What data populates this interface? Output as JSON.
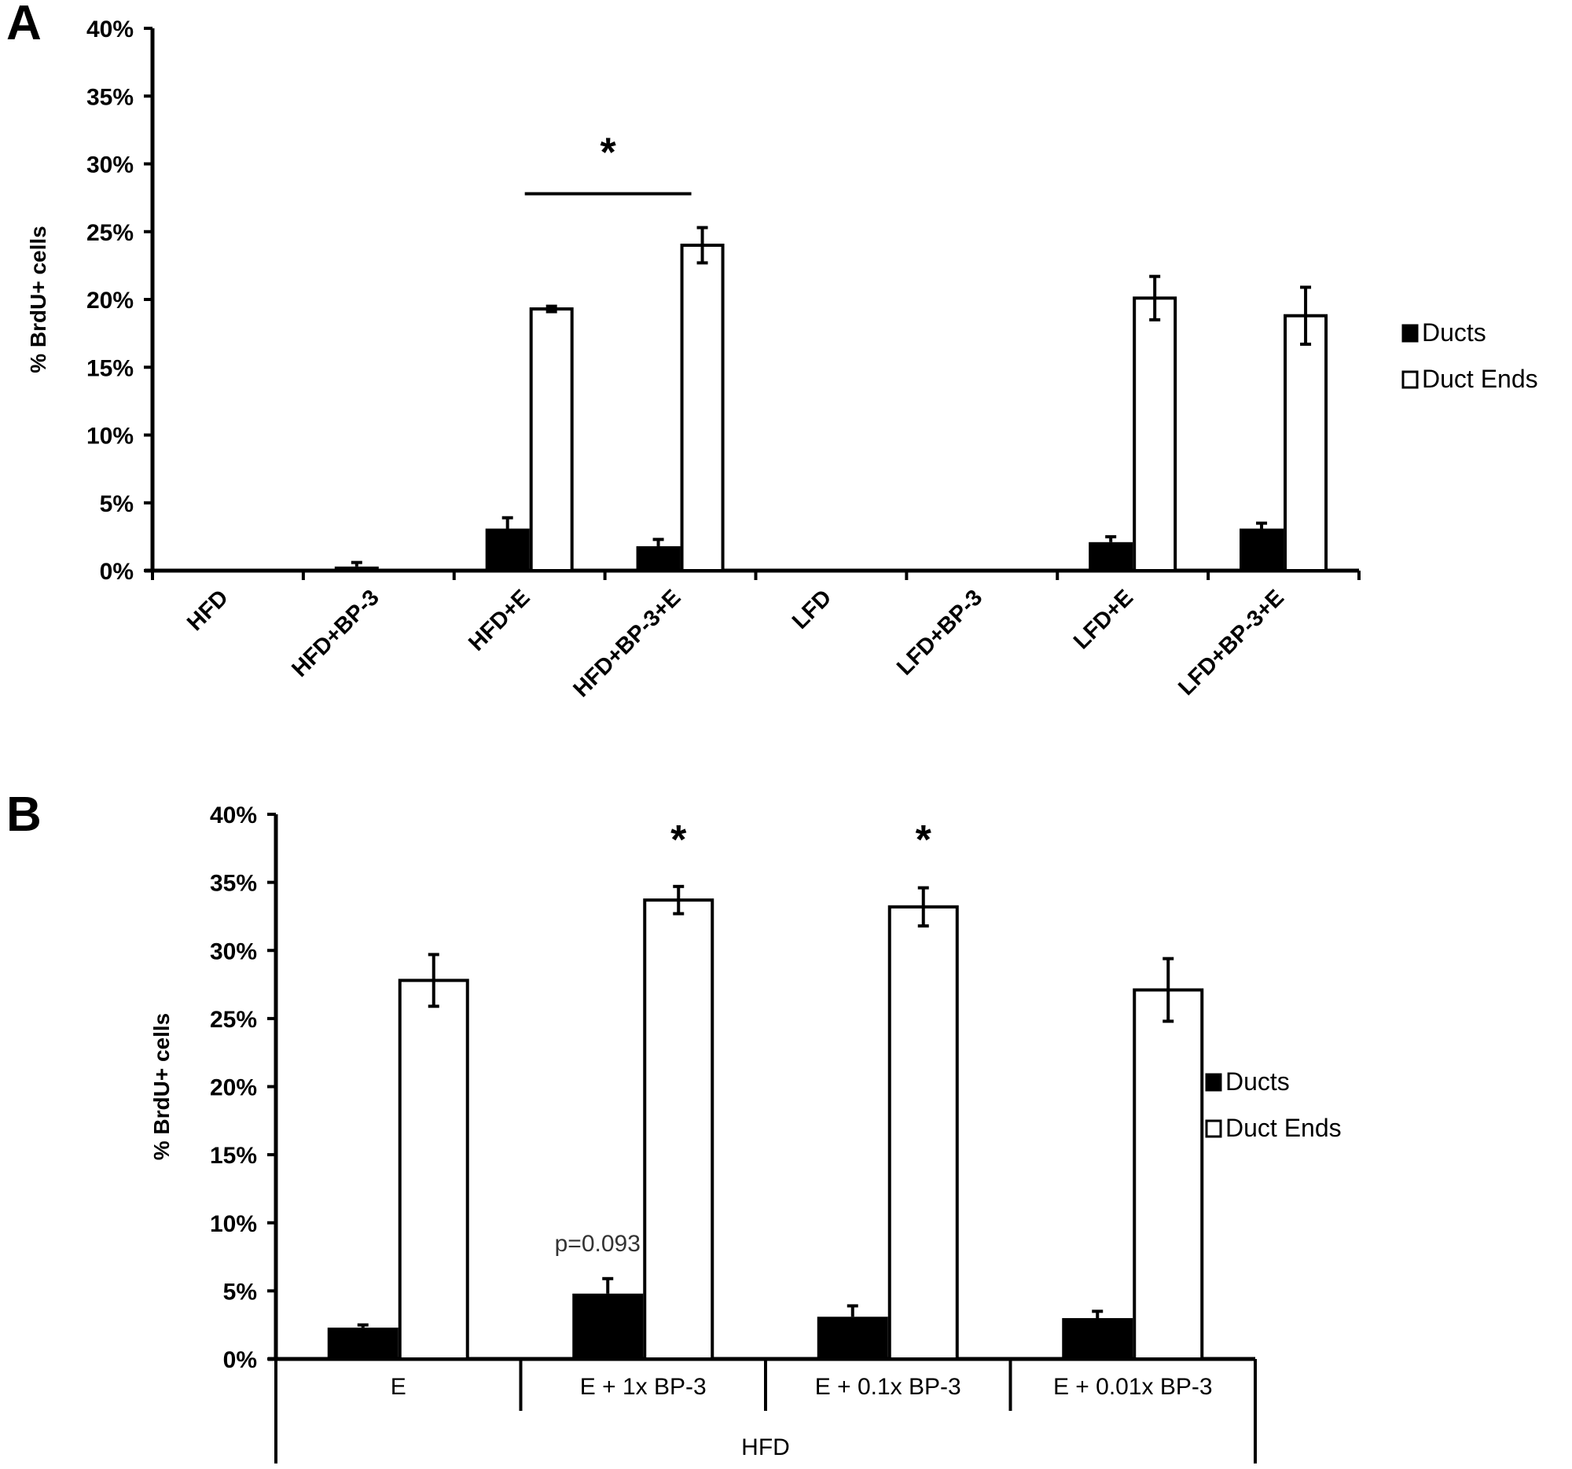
{
  "figure": {
    "panels": [
      "A",
      "B"
    ]
  },
  "chart_data": [
    {
      "panel": "A",
      "type": "bar",
      "title": "",
      "xlabel": "",
      "ylabel": "% BrdU+ cells",
      "ylim": [
        0,
        40
      ],
      "yticks": [
        "0%",
        "5%",
        "10%",
        "15%",
        "20%",
        "25%",
        "30%",
        "35%",
        "40%"
      ],
      "grid": false,
      "legend_position": "right",
      "categories": [
        "HFD",
        "HFD+BP-3",
        "HFD+E",
        "HFD+BP-3+E",
        "LFD",
        "LFD+BP-3",
        "LFD+E",
        "LFD+BP-3+E"
      ],
      "series": [
        {
          "name": "Ducts",
          "fill": "#000000",
          "values": [
            0,
            0.3,
            3.1,
            1.8,
            0,
            0,
            2.1,
            3.1
          ],
          "errors": [
            0,
            0.3,
            0.8,
            0.5,
            0,
            0,
            0.4,
            0.4
          ]
        },
        {
          "name": "Duct Ends",
          "fill": "#ffffff",
          "values": [
            0,
            0,
            19.3,
            24.0,
            0,
            0,
            20.1,
            18.8
          ],
          "errors": [
            0,
            0,
            0.2,
            1.3,
            0,
            0,
            1.6,
            2.1
          ]
        }
      ],
      "annotations": [
        {
          "text": "*",
          "type": "significance-bracket",
          "from": "HFD+E",
          "to": "HFD+BP-3+E",
          "y": 27.8
        }
      ]
    },
    {
      "panel": "B",
      "type": "bar",
      "title": "",
      "xlabel": "HFD",
      "ylabel": "% BrdU+ cells",
      "ylim": [
        0,
        40
      ],
      "yticks": [
        "0%",
        "5%",
        "10%",
        "15%",
        "20%",
        "25%",
        "30%",
        "35%",
        "40%"
      ],
      "grid": false,
      "legend_position": "right",
      "categories": [
        "E",
        "E + 1x BP-3",
        "E + 0.1x BP-3",
        "E + 0.01x BP-3"
      ],
      "group_label": "HFD",
      "series": [
        {
          "name": "Ducts",
          "fill": "#000000",
          "values": [
            2.3,
            4.8,
            3.1,
            3.0
          ],
          "errors": [
            0.2,
            1.1,
            0.8,
            0.5
          ]
        },
        {
          "name": "Duct Ends",
          "fill": "#ffffff",
          "values": [
            27.8,
            33.7,
            33.2,
            27.1
          ],
          "errors": [
            1.9,
            1.0,
            1.4,
            2.3
          ]
        }
      ],
      "annotations": [
        {
          "text": "*",
          "type": "significance",
          "category": "E + 1x BP-3",
          "series": "Duct Ends"
        },
        {
          "text": "*",
          "type": "significance",
          "category": "E + 0.1x BP-3",
          "series": "Duct Ends"
        },
        {
          "text": "p=0.093",
          "type": "p-value",
          "category": "E + 1x BP-3",
          "series": "Ducts"
        }
      ]
    }
  ]
}
